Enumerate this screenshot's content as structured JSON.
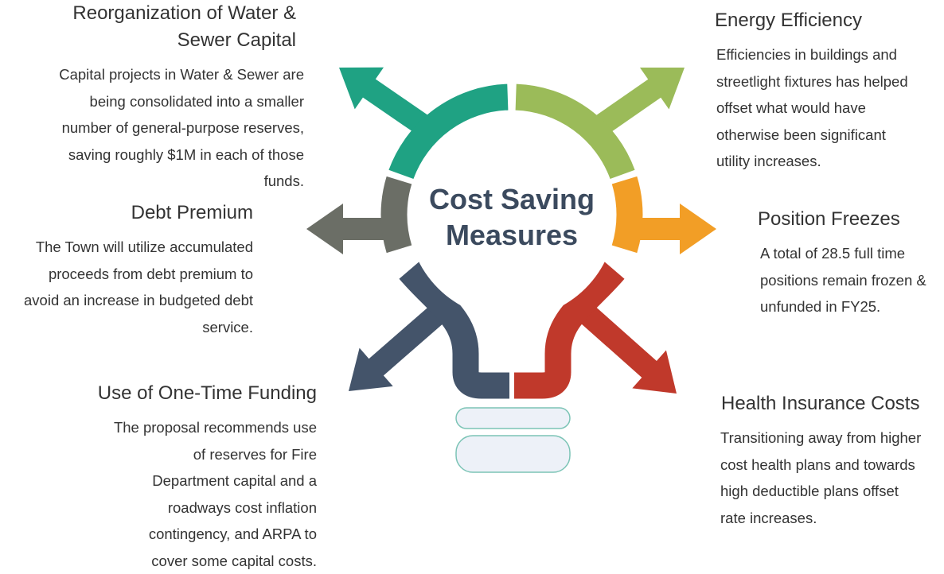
{
  "title": "Cost Saving Measures",
  "items": [
    {
      "heading": [
        "Reorganization of Water &",
        "Sewer Capital"
      ],
      "body": [
        "Capital projects in Water & Sewer are",
        "being consolidated into a smaller",
        "number of general-purpose reserves,",
        "saving roughly $1M in each of those",
        "funds."
      ]
    },
    {
      "heading": [
        "Debt Premium"
      ],
      "body": [
        "The Town will utilize accumulated",
        "proceeds from debt premium to",
        "avoid an increase in budgeted debt",
        "service."
      ]
    },
    {
      "heading": [
        "Use of One-Time Funding"
      ],
      "body": [
        "The proposal recommends use",
        "of reserves for Fire",
        "Department capital and a",
        "roadways cost inflation",
        "contingency, and ARPA to",
        "cover some capital costs."
      ]
    },
    {
      "heading": [
        "Energy Efficiency"
      ],
      "body": [
        "Efficiencies in buildings and",
        "streetlight fixtures has helped",
        "offset what would have",
        "otherwise been significant",
        "utility increases."
      ]
    },
    {
      "heading": [
        "Position Freezes"
      ],
      "body": [
        "A total of 28.5 full time",
        "positions remain frozen &",
        "unfunded in FY25."
      ]
    },
    {
      "heading": [
        "Health Insurance Costs"
      ],
      "body": [
        "Transitioning away from higher",
        "cost health plans and towards",
        "high deductible plans offset",
        "rate increases."
      ]
    }
  ]
}
